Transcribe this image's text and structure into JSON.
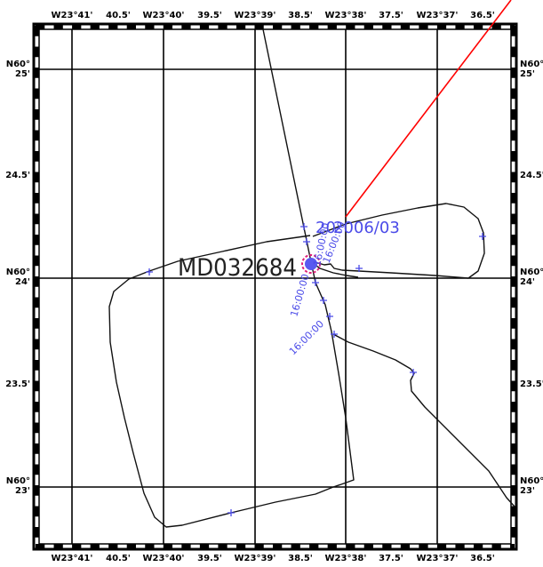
{
  "map": {
    "top_lon_labels": [
      "W23°41'",
      "40.5'",
      "W23°40'",
      "39.5'",
      "W23°39'",
      "38.5'",
      "W23°38'",
      "37.5'",
      "W23°37'",
      "36.5'"
    ],
    "bottom_lon_labels": [
      "W23°41'",
      "40.5'",
      "W23°40'",
      "39.5'",
      "W23°39'",
      "38.5'",
      "W23°38'",
      "37.5'",
      "W23°37'",
      "36.5'"
    ],
    "left_lat_labels": [
      {
        "line1": "N60°",
        "line2": "25'"
      },
      {
        "line1": "24.5'",
        "line2": ""
      },
      {
        "line1": "N60°",
        "line2": "24'"
      },
      {
        "line1": "23.5'",
        "line2": ""
      },
      {
        "line1": "N60°",
        "line2": "23'"
      }
    ],
    "right_lat_labels": [
      {
        "line1": "N60°",
        "line2": "25'"
      },
      {
        "line1": "24.5'",
        "line2": ""
      },
      {
        "line1": "N60°",
        "line2": "24'"
      },
      {
        "line1": "23.5'",
        "line2": ""
      },
      {
        "line1": "N60°",
        "line2": "23'"
      }
    ],
    "station_id": "MD032684",
    "date_label": "2006/03",
    "date_prefix": "20",
    "time_labels": [
      "16:00:00",
      "16:00:00",
      "16:00:00",
      "16:00:00"
    ],
    "colors": {
      "track": "#111111",
      "heading_line": "#ff0000",
      "annotation": "#4a4ae8",
      "marker_fill": "#5a5af0",
      "marker_ring": "#e0207a",
      "grid": "#000000",
      "frame": "#000000"
    }
  }
}
